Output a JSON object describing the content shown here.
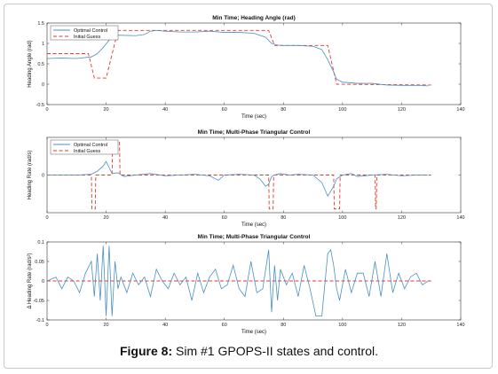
{
  "figure": {
    "caption_bold": "Figure 8:",
    "caption_text": "Sim #1 GPOPS-II states and control."
  },
  "colors": {
    "optimal": "#4a90c2",
    "guess": "#e0392b",
    "axis": "#333333",
    "zero_line": "#111111"
  },
  "chart_data": [
    {
      "type": "line",
      "title": "Min Time; Heading Angle (rad)",
      "xlabel": "Time (sec)",
      "ylabel": "Heading Angle (rad)",
      "xlim": [
        0,
        140
      ],
      "ylim": [
        -0.5,
        1.5
      ],
      "xticks": [
        "0",
        "20",
        "40",
        "60",
        "80",
        "100",
        "120",
        "140"
      ],
      "yticks": [
        "-0.5",
        "0",
        "0.5",
        "1",
        "1.5"
      ],
      "legend": {
        "position": "top-left",
        "entries": [
          "Optimal Control",
          "Initial Guess"
        ]
      },
      "series": [
        {
          "name": "Optimal Control",
          "style": "solid",
          "x": [
            0,
            5,
            10,
            15,
            17,
            19,
            21,
            22,
            23,
            25,
            30,
            33,
            35,
            37,
            40,
            45,
            50,
            55,
            60,
            65,
            70,
            74,
            76,
            78,
            80,
            85,
            90,
            93,
            95,
            97,
            98,
            100,
            105,
            110,
            115,
            120,
            125,
            129
          ],
          "y": [
            0.63,
            0.64,
            0.63,
            0.67,
            0.75,
            0.9,
            1.08,
            1.15,
            1.2,
            1.2,
            1.19,
            1.22,
            1.3,
            1.32,
            1.3,
            1.28,
            1.28,
            1.3,
            1.27,
            1.27,
            1.25,
            1.15,
            1.0,
            0.96,
            0.95,
            0.95,
            0.93,
            0.85,
            0.6,
            0.3,
            0.12,
            0.05,
            0.02,
            0.02,
            -0.02,
            -0.03,
            -0.03,
            -0.04
          ]
        },
        {
          "name": "Initial Guess",
          "style": "dashed",
          "x": [
            0,
            14,
            16,
            19,
            20,
            24,
            75,
            77,
            95,
            98,
            130
          ],
          "y": [
            0.75,
            0.75,
            0.15,
            0.15,
            0.15,
            1.32,
            1.32,
            0.95,
            0.95,
            0.0,
            -0.02
          ]
        }
      ]
    },
    {
      "type": "line",
      "title": "Min Time; Multi-Phase Triangular Control",
      "xlabel": "Time (sec)",
      "ylabel": "Heading Rate (rad/s)",
      "xlim": [
        0,
        140
      ],
      "ylim": [
        -0.5,
        0.5
      ],
      "xticks": [
        "0",
        "20",
        "40",
        "60",
        "80",
        "100",
        "120",
        "140"
      ],
      "yticks": [
        "0"
      ],
      "legend": {
        "position": "top-left",
        "entries": [
          "Optimal Control",
          "Initial Guess"
        ]
      },
      "series": [
        {
          "name": "Optimal Control",
          "style": "solid",
          "x": [
            0,
            10,
            15,
            17,
            19,
            20,
            21,
            22,
            24,
            26,
            30,
            35,
            40,
            45,
            50,
            55,
            58,
            60,
            65,
            70,
            72,
            74,
            75,
            76,
            77,
            79,
            82,
            85,
            90,
            93,
            95,
            97,
            98,
            100,
            103,
            105,
            110,
            115,
            120,
            125,
            129
          ],
          "y": [
            0,
            0,
            0.01,
            0.05,
            0.12,
            0.18,
            0.1,
            0.02,
            0.03,
            -0.02,
            0,
            0.02,
            -0.01,
            0.0,
            0.01,
            -0.01,
            -0.07,
            0.0,
            0.01,
            0.0,
            -0.05,
            -0.15,
            -0.12,
            -0.02,
            0.0,
            0.02,
            0.0,
            0.01,
            0.0,
            -0.1,
            -0.28,
            -0.15,
            -0.05,
            0.0,
            0.02,
            -0.02,
            0.0,
            0.01,
            -0.01,
            0.0,
            0.0
          ]
        },
        {
          "name": "Initial Guess",
          "style": "dashed",
          "x": [
            0,
            15,
            15.2,
            16.3,
            16.5,
            22,
            22.2,
            24.5,
            24.7,
            75,
            75.2,
            76.5,
            76.7,
            97,
            97.2,
            99,
            99.2,
            111,
            111.2,
            111.4,
            111.6,
            130
          ],
          "y": [
            0,
            0,
            -0.45,
            -0.45,
            0,
            0,
            0.45,
            0.45,
            0,
            0,
            -0.45,
            -0.45,
            0,
            0,
            -0.45,
            -0.45,
            0,
            0,
            -0.45,
            -0.45,
            0,
            0
          ]
        }
      ]
    },
    {
      "type": "line",
      "title": "Min Time; Multi-Phase Triangular Control",
      "xlabel": "Time (sec)",
      "ylabel": "Δ Heading Rate (rad/s²)",
      "xlim": [
        0,
        140
      ],
      "ylim": [
        -0.1,
        0.1
      ],
      "xticks": [
        "0",
        "20",
        "40",
        "60",
        "80",
        "100",
        "120",
        "140"
      ],
      "yticks": [
        "-0.1",
        "-0.05",
        "0",
        "0.05",
        "0.1"
      ],
      "series": [
        {
          "name": "Optimal Control",
          "style": "solid",
          "x": [
            0,
            3,
            5,
            7,
            9,
            11,
            13,
            15,
            16,
            17,
            18,
            19,
            20,
            21,
            22,
            23,
            24,
            25,
            27,
            29,
            31,
            33,
            35,
            37,
            39,
            41,
            43,
            45,
            47,
            49,
            51,
            53,
            55,
            57,
            59,
            61,
            63,
            65,
            67,
            69,
            71,
            73,
            75,
            76,
            77,
            78,
            79,
            81,
            83,
            85,
            87,
            89,
            91,
            93,
            95,
            96,
            97,
            98,
            99,
            101,
            103,
            105,
            107,
            109,
            111,
            113,
            115,
            117,
            119,
            121,
            123,
            125,
            127,
            129
          ],
          "y": [
            0,
            0.01,
            -0.02,
            0.01,
            0,
            -0.03,
            0.02,
            0.05,
            -0.04,
            0.07,
            -0.05,
            0.09,
            -0.09,
            0.09,
            -0.09,
            0.05,
            -0.02,
            0.01,
            -0.03,
            0.02,
            -0.01,
            0.01,
            -0.04,
            0.03,
            0,
            -0.02,
            0.02,
            -0.01,
            0.01,
            -0.05,
            0.02,
            -0.03,
            0.01,
            0.03,
            -0.02,
            -0.01,
            0.04,
            -0.02,
            -0.04,
            0.05,
            -0.03,
            -0.02,
            0.08,
            -0.08,
            0.04,
            -0.05,
            0.03,
            -0.01,
            0.02,
            -0.04,
            0.04,
            -0.02,
            -0.09,
            -0.09,
            0.07,
            0.08,
            0.04,
            -0.02,
            -0.05,
            0.03,
            -0.03,
            0.02,
            0.02,
            -0.04,
            0.05,
            -0.04,
            0.07,
            -0.03,
            0.02,
            -0.02,
            0.01,
            0.02,
            -0.01,
            0.0
          ]
        },
        {
          "name": "Initial Guess",
          "style": "dashed",
          "x": [
            0,
            130
          ],
          "y": [
            0,
            0
          ]
        }
      ]
    }
  ]
}
